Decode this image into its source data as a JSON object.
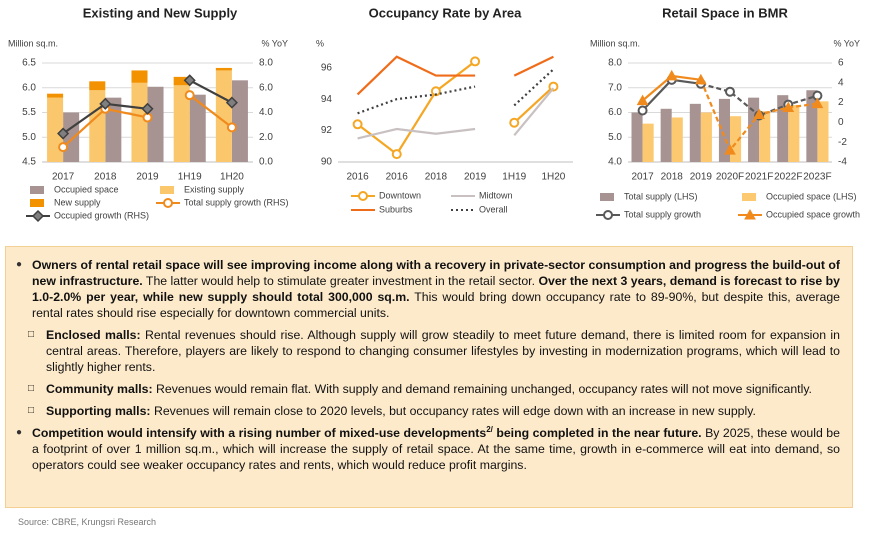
{
  "chart_data": [
    {
      "type": "bar",
      "title": "Existing and New Supply",
      "y_label": "Million sq.m.",
      "y2_label": "% YoY",
      "categories": [
        "2017",
        "2018",
        "2019",
        "1H19",
        "1H20"
      ],
      "ylim": [
        4.5,
        6.5
      ],
      "yticks": [
        4.5,
        {
          "value": 5,
          "label": "5.0"
        },
        5.5,
        {
          "value": 6,
          "label": "6.0"
        },
        6.5
      ],
      "y2lim": [
        0,
        8
      ],
      "y2ticks": [
        {
          "value": 0,
          "label": "0.0"
        },
        {
          "value": 2,
          "label": "2.0"
        },
        {
          "value": 4,
          "label": "4.0"
        },
        {
          "value": 6,
          "label": "6.0"
        },
        {
          "value": 8,
          "label": "8.0"
        }
      ],
      "grid": true,
      "series": [
        {
          "name": "Occupied space",
          "kind": "bar",
          "stack": "occupied",
          "color": "#a89393",
          "values": [
            5.5,
            5.8,
            6.02,
            5.86,
            6.15
          ]
        },
        {
          "name": "Existing supply",
          "kind": "bar",
          "stack": "supply",
          "color": "#fac76c",
          "values": [
            5.8,
            5.95,
            6.1,
            6.05,
            6.35
          ]
        },
        {
          "name": "New supply",
          "kind": "bar",
          "stack": "supply",
          "color": "#f39200",
          "values": [
            0.08,
            0.18,
            0.25,
            0.17,
            0.05
          ]
        },
        {
          "name": "Total supply growth (RHS)",
          "kind": "line",
          "axis": "y2",
          "marker": "circle",
          "color": "#f08a1c",
          "values": [
            1.2,
            4.3,
            3.6,
            5.4,
            2.8
          ]
        },
        {
          "name": "Occupied growth (RHS)",
          "kind": "line",
          "axis": "y2",
          "marker": "diamond",
          "color": "#404040",
          "values": [
            2.3,
            4.7,
            4.3,
            6.6,
            4.8
          ]
        }
      ]
    },
    {
      "type": "line",
      "title": "Occupancy Rate by Area",
      "y_label": "%",
      "categories": [
        "2016",
        "2016",
        "2018",
        "2019",
        "1H19",
        "1H20"
      ],
      "ylim": [
        90,
        97
      ],
      "yticks": [
        90,
        92,
        94,
        96
      ],
      "grid": false,
      "series": [
        {
          "name": "Downtown",
          "kind": "line",
          "marker": "circle",
          "color": "#f5a623",
          "values": [
            92.4,
            90.5,
            94.5,
            96.4,
            92.5,
            94.8
          ]
        },
        {
          "name": "Midtown",
          "kind": "line",
          "color": "#c9c1c1",
          "values": [
            91.5,
            92.1,
            91.8,
            92.1,
            91.7,
            94.7
          ]
        },
        {
          "name": "Suburbs",
          "kind": "line",
          "color": "#ef6c1a",
          "values": [
            94.3,
            96.7,
            95.5,
            95.5,
            95.5,
            96.7
          ]
        },
        {
          "name": "Overall",
          "kind": "line",
          "dash": "dotted",
          "color": "#404040",
          "values": [
            93.1,
            94.0,
            94.3,
            94.8,
            93.6,
            95.9
          ]
        }
      ]
    },
    {
      "type": "bar",
      "title": "Retail Space in BMR",
      "y_label": "Million sq.m.",
      "y2_label": "% YoY",
      "categories": [
        "2017",
        "2018",
        "2019",
        "2020F",
        "2021F",
        "2022F",
        "2023F"
      ],
      "ylim": [
        4,
        8
      ],
      "yticks": [
        {
          "value": 4,
          "label": "4.0"
        },
        {
          "value": 5,
          "label": "5.0"
        },
        {
          "value": 6,
          "label": "6.0"
        },
        {
          "value": 7,
          "label": "7.0"
        },
        {
          "value": 8,
          "label": "8.0"
        }
      ],
      "y2lim": [
        -4,
        6
      ],
      "y2ticks": [
        -4,
        -2,
        0,
        2,
        4,
        6
      ],
      "grid": true,
      "series": [
        {
          "name": "Total supply (LHS)",
          "kind": "bar",
          "stack": "total",
          "color": "#a89393",
          "values": [
            6.0,
            6.15,
            6.35,
            6.55,
            6.6,
            6.7,
            6.9
          ]
        },
        {
          "name": "Occupied space (LHS)",
          "kind": "bar",
          "stack": "occupied",
          "color": "#fcc870",
          "values": [
            5.55,
            5.8,
            6.0,
            5.85,
            6.05,
            6.3,
            6.45
          ]
        },
        {
          "name": "Total supply growth",
          "kind": "line",
          "axis": "y2",
          "marker": "circle",
          "color": "#595959",
          "values": [
            1.2,
            4.3,
            3.9,
            3.1,
            0.7,
            1.8,
            2.7
          ]
        },
        {
          "name": "Occupied space growth",
          "kind": "line",
          "axis": "y2",
          "marker": "triangle",
          "color": "#f08a1c",
          "values": [
            2.2,
            4.7,
            4.3,
            -2.8,
            0.8,
            1.5,
            1.9
          ]
        }
      ]
    }
  ],
  "text_box": {
    "bullets": [
      {
        "segments": [
          {
            "text": "Owners of rental retail space will see improving income along with a recovery in private-sector consumption and progress the build-out of new infrastructure.",
            "bold": true
          },
          {
            "text": " The latter would help to stimulate greater investment in the retail sector. "
          },
          {
            "text": "Over the next 3 years, demand is forecast to rise by 1.0-2.0% per year, while new supply should total 300,000 sq.m.",
            "bold": true
          },
          {
            "text": " This would bring down occupancy rate to 89-90%, but despite this, average rental rates should rise especially for downtown commercial units."
          }
        ],
        "sub": [
          {
            "segments": [
              {
                "text": "Enclosed malls:",
                "bold": true
              },
              {
                "text": " Rental revenues should rise. Although supply will grow steadily to meet future demand, there is limited room for expansion in central areas. Therefore, players are likely to respond to changing consumer lifestyles by investing in modernization programs, which will lead to slightly higher rents."
              }
            ]
          },
          {
            "segments": [
              {
                "text": "Community malls:",
                "bold": true
              },
              {
                "text": "  Revenues would remain flat. With supply and demand remaining unchanged, occupancy rates will not move significantly."
              }
            ]
          },
          {
            "segments": [
              {
                "text": "Supporting malls:",
                "bold": true
              },
              {
                "text": " Revenues will remain close to 2020 levels, but occupancy rates will edge down with an increase in new supply."
              }
            ]
          }
        ]
      },
      {
        "segments": [
          {
            "text": "Competition would intensify with a rising number of mixed-use developments",
            "bold": true
          },
          {
            "text": "2/",
            "bold": true,
            "sup": true
          },
          {
            "text": " being completed in the near future.",
            "bold": true
          },
          {
            "text": " By 2025, these would be a footprint of over 1 million sq.m., which will increase the supply of retail space. At the same time, growth in e-commerce will eat into demand, so operators could see weaker occupancy rates and rents, which would reduce profit margins."
          }
        ]
      }
    ]
  },
  "source": "Source: CBRE, Krungsri Research"
}
